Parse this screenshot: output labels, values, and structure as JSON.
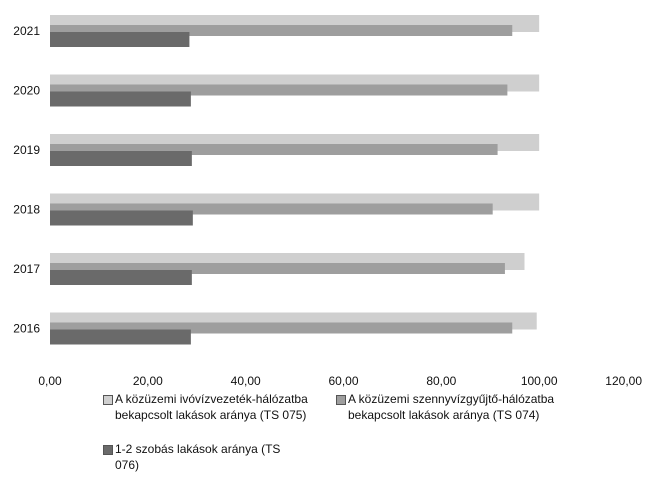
{
  "chart_data": {
    "type": "bar",
    "orientation": "horizontal",
    "categories": [
      "2021",
      "2020",
      "2019",
      "2018",
      "2017",
      "2016"
    ],
    "series": [
      {
        "name": "A közüzemi ivóvízvezeték-hálózatba bekapcsolt lakások aránya (TS 075)",
        "values": [
          100.0,
          100.0,
          100.0,
          100.0,
          97.0,
          99.5
        ],
        "color": "#cfcfcf"
      },
      {
        "name": "A közüzemi szennyvízgyűjtő-hálózatba bekapcsolt lakások aránya (TS 074)",
        "values": [
          94.5,
          93.5,
          91.5,
          90.5,
          93.0,
          94.5
        ],
        "color": "#9e9e9e"
      },
      {
        "name": "1-2 szobás lakások aránya (TS 076)",
        "values": [
          28.5,
          28.8,
          29.0,
          29.2,
          29.0,
          28.8
        ],
        "color": "#6a6a6a"
      }
    ],
    "xlim": [
      0,
      120
    ],
    "xticks": [
      "0,00",
      "20,00",
      "40,00",
      "60,00",
      "80,00",
      "100,00",
      "120,00"
    ],
    "title": "",
    "xlabel": "",
    "ylabel": "",
    "grid": false,
    "legend_position": "bottom"
  }
}
